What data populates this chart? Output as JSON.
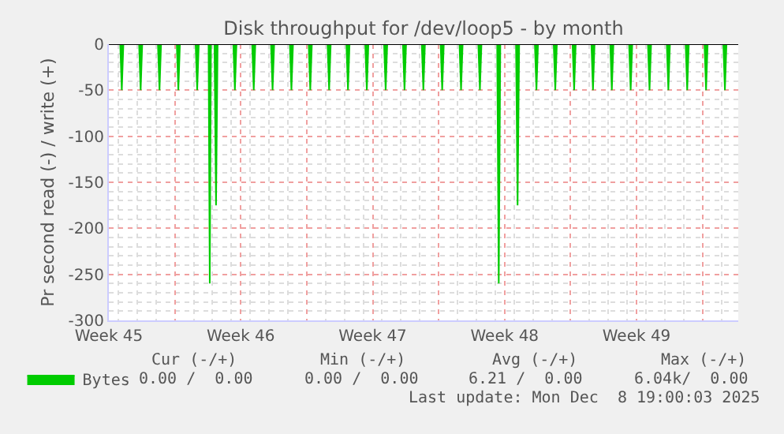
{
  "chart_data": {
    "type": "area",
    "title": "Disk throughput for /dev/loop5 - by month",
    "ylabel": "Pr second read (-) / write (+)",
    "xlim": [
      "2025-11-05T12:00",
      "2025-12-08T21:30"
    ],
    "xticks": [
      {
        "value": "2025-11-05T12:00",
        "label": "Week 45"
      },
      {
        "value": "2025-11-09T00:00",
        "label": null
      },
      {
        "value": "2025-11-12T12:00",
        "label": "Week 46"
      },
      {
        "value": "2025-11-16T00:00",
        "label": null
      },
      {
        "value": "2025-11-19T12:00",
        "label": "Week 47"
      },
      {
        "value": "2025-11-23T00:00",
        "label": null
      },
      {
        "value": "2025-11-26T12:00",
        "label": "Week 48"
      },
      {
        "value": "2025-11-30T00:00",
        "label": null
      },
      {
        "value": "2025-12-03T12:00",
        "label": "Week 49"
      },
      {
        "value": "2025-12-07T00:00",
        "label": null
      }
    ],
    "ylim": [
      -300,
      0
    ],
    "yticks": [
      -300,
      -250,
      -200,
      -150,
      -100,
      -50,
      0
    ],
    "grid": true,
    "legend": "bottom left",
    "series": [
      {
        "name": "Bytes",
        "color": "#00cc00",
        "x": [
          "2025-11-06T02:30",
          "2025-11-06T04:30",
          "2025-11-06T06:30",
          "2025-11-07T02:30",
          "2025-11-07T04:30",
          "2025-11-07T06:30",
          "2025-11-08T02:30",
          "2025-11-08T04:30",
          "2025-11-08T06:30",
          "2025-11-09T02:30",
          "2025-11-09T04:30",
          "2025-11-09T06:30",
          "2025-11-10T02:30",
          "2025-11-10T04:30",
          "2025-11-10T06:30",
          "2025-11-10T19:00",
          "2025-11-10T20:30",
          "2025-11-10T22:00",
          "2025-11-11T02:30",
          "2025-11-11T04:30",
          "2025-11-11T06:30",
          "2025-11-12T02:30",
          "2025-11-12T04:30",
          "2025-11-12T06:30",
          "2025-11-13T02:30",
          "2025-11-13T04:30",
          "2025-11-13T06:30",
          "2025-11-14T02:30",
          "2025-11-14T04:30",
          "2025-11-14T06:30",
          "2025-11-15T02:30",
          "2025-11-15T04:30",
          "2025-11-15T06:30",
          "2025-11-16T02:30",
          "2025-11-16T04:30",
          "2025-11-16T06:30",
          "2025-11-17T02:30",
          "2025-11-17T04:30",
          "2025-11-17T06:30",
          "2025-11-18T02:30",
          "2025-11-18T04:30",
          "2025-11-18T06:30",
          "2025-11-19T02:30",
          "2025-11-19T04:30",
          "2025-11-19T06:30",
          "2025-11-20T02:30",
          "2025-11-20T04:30",
          "2025-11-20T06:30",
          "2025-11-21T02:30",
          "2025-11-21T04:30",
          "2025-11-21T06:30",
          "2025-11-22T02:30",
          "2025-11-22T04:30",
          "2025-11-22T06:30",
          "2025-11-23T02:30",
          "2025-11-23T04:30",
          "2025-11-23T06:30",
          "2025-11-24T02:30",
          "2025-11-24T04:30",
          "2025-11-24T06:30",
          "2025-11-25T02:30",
          "2025-11-25T04:30",
          "2025-11-25T06:30",
          "2025-11-26T02:30",
          "2025-11-26T04:30",
          "2025-11-26T06:30",
          "2025-11-27T02:30",
          "2025-11-27T04:30",
          "2025-11-27T06:30",
          "2025-11-28T02:30",
          "2025-11-28T04:30",
          "2025-11-28T06:30",
          "2025-11-29T02:30",
          "2025-11-29T04:30",
          "2025-11-29T06:30",
          "2025-11-30T02:30",
          "2025-11-30T04:30",
          "2025-11-30T06:30",
          "2025-12-01T02:30",
          "2025-12-01T04:30",
          "2025-12-01T06:30",
          "2025-12-02T02:30",
          "2025-12-02T04:30",
          "2025-12-02T06:30",
          "2025-12-03T02:30",
          "2025-12-03T04:30",
          "2025-12-03T06:30",
          "2025-12-04T02:30",
          "2025-12-04T04:30",
          "2025-12-04T06:30",
          "2025-12-05T02:30",
          "2025-12-05T04:30",
          "2025-12-05T06:30",
          "2025-12-06T02:30",
          "2025-12-06T04:30",
          "2025-12-06T06:30",
          "2025-12-07T02:30",
          "2025-12-07T04:30",
          "2025-12-07T06:30",
          "2025-12-08T02:30",
          "2025-12-08T04:30",
          "2025-12-08T06:30"
        ],
        "values": [
          0,
          -50,
          0,
          0,
          -50,
          0,
          0,
          -50,
          0,
          0,
          -50,
          0,
          0,
          -50,
          0,
          0,
          -260,
          0,
          0,
          -175,
          0,
          0,
          -50,
          0,
          0,
          -50,
          0,
          0,
          -50,
          0,
          0,
          -50,
          0,
          0,
          -50,
          0,
          0,
          -50,
          0,
          0,
          -50,
          0,
          0,
          -50,
          0,
          0,
          -50,
          0,
          0,
          -50,
          0,
          0,
          -50,
          0,
          0,
          -50,
          0,
          0,
          -50,
          0,
          0,
          -50,
          0,
          0,
          -260,
          0,
          0,
          -175,
          0,
          0,
          -50,
          0,
          0,
          -50,
          0,
          0,
          -50,
          0,
          0,
          -50,
          0,
          0,
          -50,
          0,
          0,
          -50,
          0,
          0,
          -50,
          0,
          0,
          -50,
          0,
          0,
          -50,
          0,
          0,
          -50,
          0,
          0,
          -50,
          0
        ]
      }
    ],
    "annotations": [
      "Cur (-/+)",
      "Min (-/+)",
      "Avg (-/+)",
      "Max (-/+)",
      "0.00 /  0.00",
      "0.00 /  0.00",
      "6.21 /  0.00",
      "6.04k/  0.00",
      "Last update: Mon Dec  8 19:00:03 2025"
    ]
  }
}
